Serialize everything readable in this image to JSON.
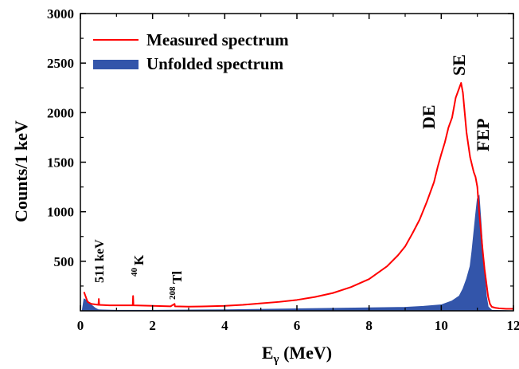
{
  "chart_data": {
    "type": "line",
    "xlabel_main": "E",
    "xlabel_sub": "γ",
    "xlabel_unit": " (MeV)",
    "ylabel": "Counts/1 keV",
    "xlim": [
      0,
      12
    ],
    "ylim": [
      0,
      3000
    ],
    "x_ticks": [
      "0",
      "2",
      "4",
      "6",
      "8",
      "10",
      "12"
    ],
    "y_ticks": [
      "500",
      "1000",
      "1500",
      "2000",
      "2500",
      "3000"
    ],
    "legend_position": "top-left",
    "series": [
      {
        "name": "Measured spectrum",
        "color": "#ff0000",
        "style": "line",
        "x": [
          0.1,
          0.2,
          0.3,
          0.5,
          0.51,
          0.52,
          0.8,
          1.0,
          1.45,
          1.46,
          1.47,
          2.0,
          2.5,
          2.61,
          2.62,
          3.0,
          3.5,
          4.0,
          4.5,
          5.0,
          5.5,
          6.0,
          6.5,
          7.0,
          7.5,
          8.0,
          8.5,
          8.8,
          9.0,
          9.2,
          9.4,
          9.6,
          9.8,
          9.9,
          10.0,
          10.1,
          10.2,
          10.3,
          10.4,
          10.5,
          10.55,
          10.6,
          10.65,
          10.7,
          10.8,
          10.9,
          10.95,
          11.0,
          11.05,
          11.1,
          11.15,
          11.2,
          11.25,
          11.3,
          11.35,
          11.4,
          11.5,
          11.6,
          11.8,
          12.0
        ],
        "y": [
          190,
          90,
          70,
          60,
          120,
          60,
          55,
          55,
          55,
          150,
          55,
          50,
          45,
          70,
          45,
          42,
          45,
          50,
          60,
          75,
          90,
          110,
          140,
          180,
          240,
          320,
          450,
          560,
          650,
          780,
          920,
          1100,
          1300,
          1450,
          1580,
          1700,
          1850,
          1950,
          2150,
          2250,
          2300,
          2200,
          2000,
          1800,
          1550,
          1400,
          1350,
          1250,
          1000,
          800,
          600,
          420,
          280,
          140,
          70,
          40,
          30,
          25,
          20,
          20
        ]
      },
      {
        "name": "Unfolded spectrum",
        "color": "#3355aa",
        "style": "area",
        "x": [
          0.05,
          0.1,
          0.2,
          0.3,
          0.4,
          0.5,
          1.0,
          2.0,
          3.0,
          4.0,
          5.0,
          6.0,
          7.0,
          8.0,
          9.0,
          9.5,
          10.0,
          10.3,
          10.5,
          10.6,
          10.7,
          10.8,
          10.85,
          10.9,
          10.95,
          11.0,
          11.05,
          11.1,
          11.15,
          11.2,
          11.25,
          11.3,
          11.4,
          12.0
        ],
        "y": [
          0,
          120,
          100,
          60,
          30,
          10,
          5,
          5,
          8,
          10,
          15,
          20,
          25,
          30,
          35,
          45,
          60,
          100,
          150,
          220,
          320,
          450,
          600,
          780,
          960,
          1130,
          1160,
          900,
          620,
          380,
          150,
          40,
          5,
          0
        ]
      }
    ],
    "annotations": [
      {
        "text": "511 keV",
        "x": 0.51,
        "y": 350
      },
      {
        "text": "40",
        "x": 1.46,
        "y": 420
      },
      {
        "text": "K",
        "x": 1.46,
        "y": 480
      },
      {
        "text": "208",
        "x": 2.61,
        "y": 250
      },
      {
        "text": "Tl",
        "x": 2.61,
        "y": 300
      },
      {
        "text": "DE",
        "x": 10.0,
        "y": 1800
      },
      {
        "text": "SE",
        "x": 10.55,
        "y": 2400
      },
      {
        "text": "FEP",
        "x": 11.2,
        "y": 1700
      }
    ]
  }
}
